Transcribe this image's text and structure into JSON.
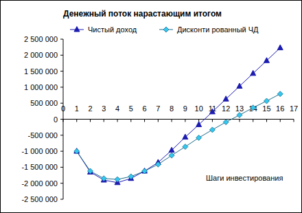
{
  "chart_data": {
    "type": "line",
    "title": "Денежный поток нарастающим итогом",
    "x_label": "Шаги инвестирования",
    "x": [
      1,
      2,
      3,
      4,
      5,
      6,
      7,
      8,
      9,
      10,
      11,
      12,
      13,
      14,
      15,
      16
    ],
    "series": [
      {
        "name": "Чистый доход",
        "color": "#1c1cb0",
        "marker": "triangle",
        "line_style": "solid",
        "values": [
          -1000000,
          -1650000,
          -1900000,
          -1980000,
          -1850000,
          -1620000,
          -1350000,
          -970000,
          -560000,
          -170000,
          230000,
          630000,
          1030000,
          1430000,
          1830000,
          2230000
        ]
      },
      {
        "name": "Дисконти рованный ЧД",
        "color": "#33c8f0",
        "marker": "diamond",
        "line_style": "solid",
        "values": [
          -1000000,
          -1620000,
          -1850000,
          -1880000,
          -1790000,
          -1620000,
          -1410000,
          -1130000,
          -860000,
          -580000,
          -330000,
          -90000,
          130000,
          360000,
          570000,
          790000
        ]
      }
    ],
    "xlim": [
      0,
      17
    ],
    "xticks": [
      0,
      1,
      2,
      3,
      4,
      5,
      6,
      7,
      8,
      9,
      10,
      11,
      12,
      13,
      14,
      15,
      16,
      17
    ],
    "ylim": [
      -2500000,
      2500000
    ],
    "yticks": [
      {
        "value": -2500000,
        "label": "-2 500 000"
      },
      {
        "value": -2000000,
        "label": "-2 000 000"
      },
      {
        "value": -1500000,
        "label": "-1 500 000"
      },
      {
        "value": -1000000,
        "label": "-1 000 000"
      },
      {
        "value": -500000,
        "label": "-500 000"
      },
      0,
      {
        "value": 500000,
        "label": "500 000"
      },
      {
        "value": 1000000,
        "label": "1 000 000"
      },
      {
        "value": 1500000,
        "label": "1 500 000"
      },
      {
        "value": 2000000,
        "label": "2 000 000"
      },
      {
        "value": 2500000,
        "label": "2 500 000"
      }
    ],
    "grid": false,
    "legend": "top"
  }
}
